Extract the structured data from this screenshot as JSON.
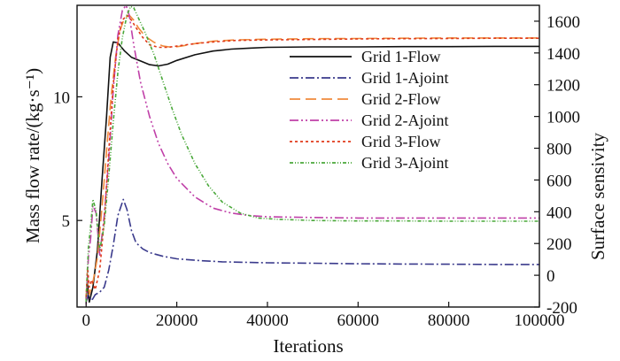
{
  "chart_data": {
    "type": "line",
    "title": "",
    "xlabel": "Iterations",
    "ylabel_left": "Mass flow rate/(kg·s⁻¹)",
    "ylabel_right": "Surface sensivity",
    "xlim": [
      -2000,
      100000
    ],
    "ylim_left": [
      1.5,
      13.7
    ],
    "ylim_right": [
      -200,
      1700
    ],
    "x_ticks": [
      0,
      20000,
      40000,
      60000,
      80000,
      100000
    ],
    "x_tick_labels": [
      "0",
      "20000",
      "40000",
      "60000",
      "80000",
      "100000"
    ],
    "y_left_ticks": [
      5,
      10
    ],
    "y_left_tick_labels": [
      "5",
      "10"
    ],
    "y_right_ticks": [
      -200,
      0,
      200,
      400,
      600,
      800,
      1000,
      1200,
      1400,
      1600
    ],
    "y_right_tick_labels": [
      "-200",
      "0",
      "200",
      "400",
      "600",
      "800",
      "1000",
      "1200",
      "1400",
      "1600"
    ],
    "grid": false,
    "legend_position": "center-right",
    "series": [
      {
        "name": "Grid 1-Flow",
        "axis": "left",
        "color": "#111111",
        "dash": "",
        "x": [
          0,
          300,
          700,
          1500,
          2500,
          3500,
          4500,
          5300,
          6000,
          7000,
          8500,
          10000,
          12000,
          14000,
          16000,
          18000,
          20000,
          24000,
          28000,
          32000,
          36000,
          40000,
          50000,
          60000,
          70000,
          80000,
          90000,
          100000
        ],
        "y": [
          1.8,
          2.4,
          1.7,
          2.3,
          3.8,
          6.6,
          9.2,
          11.6,
          12.22,
          12.18,
          11.85,
          11.6,
          11.45,
          11.3,
          11.25,
          11.32,
          11.47,
          11.7,
          11.85,
          11.93,
          11.97,
          12.0,
          12.02,
          12.02,
          12.03,
          12.03,
          12.04,
          12.04
        ]
      },
      {
        "name": "Grid 1-Ajoint",
        "axis": "left",
        "color": "#3a3a8c",
        "dash": "10 3 2 3",
        "x": [
          0,
          500,
          1200,
          2000,
          3000,
          4000,
          5000,
          6000,
          7000,
          8200,
          9000,
          10000,
          11000,
          12500,
          14000,
          17000,
          20000,
          25000,
          30000,
          40000,
          50000,
          60000,
          70000,
          80000,
          90000,
          100000
        ],
        "y": [
          1.7,
          2.0,
          1.75,
          2.0,
          2.1,
          2.3,
          3.0,
          4.0,
          5.2,
          5.85,
          5.45,
          4.6,
          4.1,
          3.85,
          3.7,
          3.55,
          3.45,
          3.38,
          3.33,
          3.29,
          3.27,
          3.25,
          3.24,
          3.23,
          3.22,
          3.22
        ]
      },
      {
        "name": "Grid 2-Flow",
        "axis": "left",
        "color": "#f08a3c",
        "dash": "12 6",
        "x": [
          0,
          300,
          700,
          1500,
          2500,
          3500,
          4500,
          5500,
          6500,
          7500,
          8500,
          9500,
          10500,
          11500,
          13000,
          15000,
          17000,
          19000,
          21000,
          24000,
          28000,
          33000,
          40000,
          50000,
          60000,
          70000,
          80000,
          90000,
          100000
        ],
        "y": [
          1.9,
          2.7,
          2.0,
          2.5,
          3.5,
          5.5,
          7.8,
          10.0,
          11.6,
          12.7,
          13.2,
          13.3,
          13.1,
          12.8,
          12.45,
          12.2,
          12.05,
          12.0,
          12.05,
          12.15,
          12.25,
          12.3,
          12.33,
          12.35,
          12.36,
          12.37,
          12.38,
          12.38,
          12.38
        ]
      },
      {
        "name": "Grid 2-Ajoint",
        "axis": "left",
        "color": "#c040a8",
        "dash": "10 3 2 3 2 3",
        "x": [
          0,
          500,
          1000,
          1500,
          2200,
          3000,
          4000,
          5000,
          6000,
          7000,
          8000,
          8800,
          9500,
          10500,
          12000,
          14000,
          16000,
          18000,
          20000,
          24000,
          28000,
          32000,
          36000,
          40000,
          50000,
          60000,
          70000,
          80000,
          90000,
          100000
        ],
        "y": [
          1.6,
          3.5,
          4.3,
          5.6,
          5.3,
          3.6,
          5.2,
          7.5,
          10.3,
          12.5,
          13.5,
          13.7,
          13.3,
          12.1,
          10.6,
          9.2,
          8.1,
          7.3,
          6.7,
          5.95,
          5.5,
          5.3,
          5.2,
          5.15,
          5.12,
          5.1,
          5.1,
          5.1,
          5.1,
          5.1
        ]
      },
      {
        "name": "Grid 3-Flow",
        "axis": "left",
        "color": "#e03a1a",
        "dash": "3 3",
        "x": [
          0,
          300,
          700,
          1200,
          2000,
          3000,
          4000,
          5000,
          6000,
          7000,
          8000,
          9000,
          10000,
          11000,
          12500,
          14000,
          16000,
          18000,
          20000,
          24000,
          28000,
          33000,
          40000,
          50000,
          60000,
          70000,
          80000,
          90000,
          100000
        ],
        "y": [
          1.9,
          3.1,
          2.3,
          2.6,
          2.2,
          3.0,
          5.0,
          7.8,
          10.5,
          12.3,
          13.1,
          13.3,
          13.1,
          12.8,
          12.4,
          12.1,
          12.0,
          12.0,
          12.05,
          12.15,
          12.22,
          12.28,
          12.3,
          12.32,
          12.34,
          12.35,
          12.36,
          12.37,
          12.37
        ]
      },
      {
        "name": "Grid 3-Ajoint",
        "axis": "left",
        "color": "#4aa83a",
        "dash": "4 2 1 2 1 2",
        "x": [
          0,
          500,
          1000,
          1500,
          2200,
          3000,
          4000,
          5000,
          6000,
          7000,
          8000,
          9000,
          9800,
          10500,
          11500,
          13000,
          15000,
          17000,
          19000,
          21000,
          24000,
          27000,
          30000,
          34000,
          38000,
          42000,
          50000,
          60000,
          70000,
          80000,
          90000,
          100000
        ],
        "y": [
          1.7,
          3.9,
          4.8,
          5.85,
          5.4,
          3.8,
          4.8,
          6.8,
          9.0,
          11.0,
          12.4,
          13.3,
          13.65,
          13.6,
          13.2,
          12.6,
          11.7,
          10.6,
          9.5,
          8.5,
          7.3,
          6.4,
          5.75,
          5.3,
          5.1,
          5.05,
          5.0,
          4.98,
          4.98,
          4.97,
          4.97,
          4.97
        ]
      }
    ]
  }
}
